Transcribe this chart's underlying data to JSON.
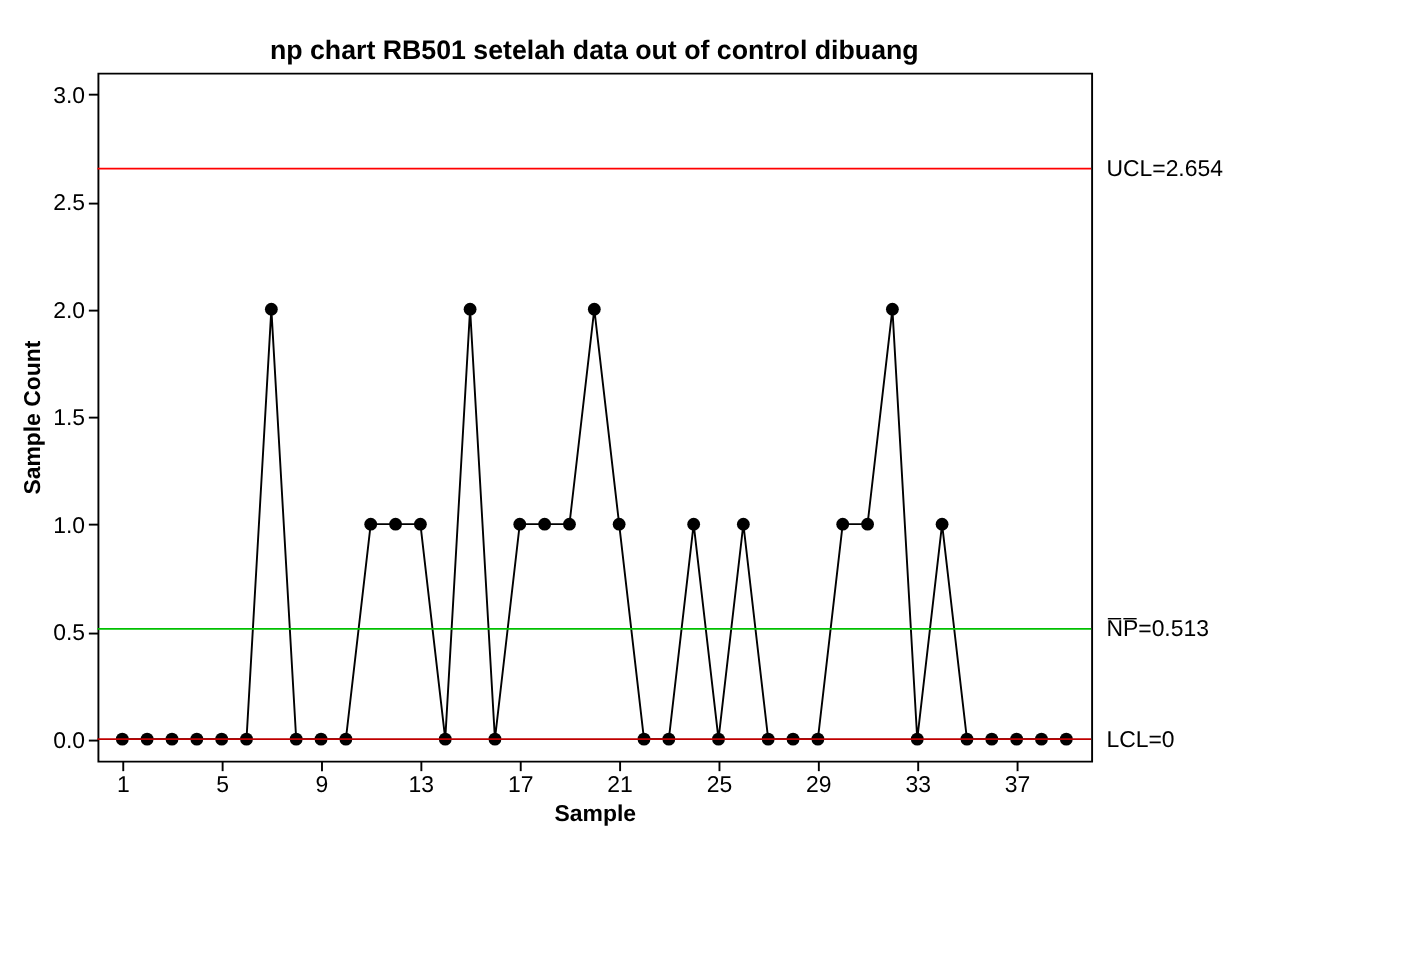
{
  "chart_data": {
    "type": "line",
    "title": "np chart RB501 setelah data out of control dibuang",
    "xlabel": "Sample",
    "ylabel": "Sample Count",
    "x": [
      1,
      2,
      3,
      4,
      5,
      6,
      7,
      8,
      9,
      10,
      11,
      12,
      13,
      14,
      15,
      16,
      17,
      18,
      19,
      20,
      21,
      22,
      23,
      24,
      25,
      26,
      27,
      28,
      29,
      30,
      31,
      32,
      33,
      34,
      35,
      36,
      37,
      38,
      39
    ],
    "series": [
      {
        "color": "#000000",
        "values": [
          0,
          0,
          0,
          0,
          0,
          0,
          2,
          0,
          0,
          0,
          1,
          1,
          1,
          0,
          2,
          0,
          1,
          1,
          1,
          2,
          1,
          0,
          0,
          1,
          0,
          1,
          0,
          0,
          0,
          1,
          1,
          2,
          0,
          1,
          0,
          0,
          0,
          0,
          0
        ]
      }
    ],
    "xlim": [
      0,
      40
    ],
    "xticks": [
      1,
      5,
      9,
      13,
      17,
      21,
      25,
      29,
      33,
      37
    ],
    "ylim": [
      -0.1,
      3.1
    ],
    "yticks": [
      {
        "value": 0,
        "label": "0.0"
      },
      {
        "value": 0.5,
        "label": "0.5"
      },
      {
        "value": 1,
        "label": "1.0"
      },
      {
        "value": 1.5,
        "label": "1.5"
      },
      {
        "value": 2,
        "label": "2.0"
      },
      {
        "value": 2.5,
        "label": "2.5"
      },
      {
        "value": 3,
        "label": "3.0"
      }
    ],
    "ref_lines": [
      {
        "axis": "y",
        "value": 2.654,
        "label": "UCL=2.654",
        "color": "#ff0000"
      },
      {
        "axis": "y",
        "value": 0.513,
        "label": "N̅P̅=0.513",
        "color": "#00c000"
      },
      {
        "axis": "y",
        "value": 0,
        "label": "LCL=0",
        "color": "#c00000"
      }
    ],
    "marker": "circle",
    "grid": false
  }
}
